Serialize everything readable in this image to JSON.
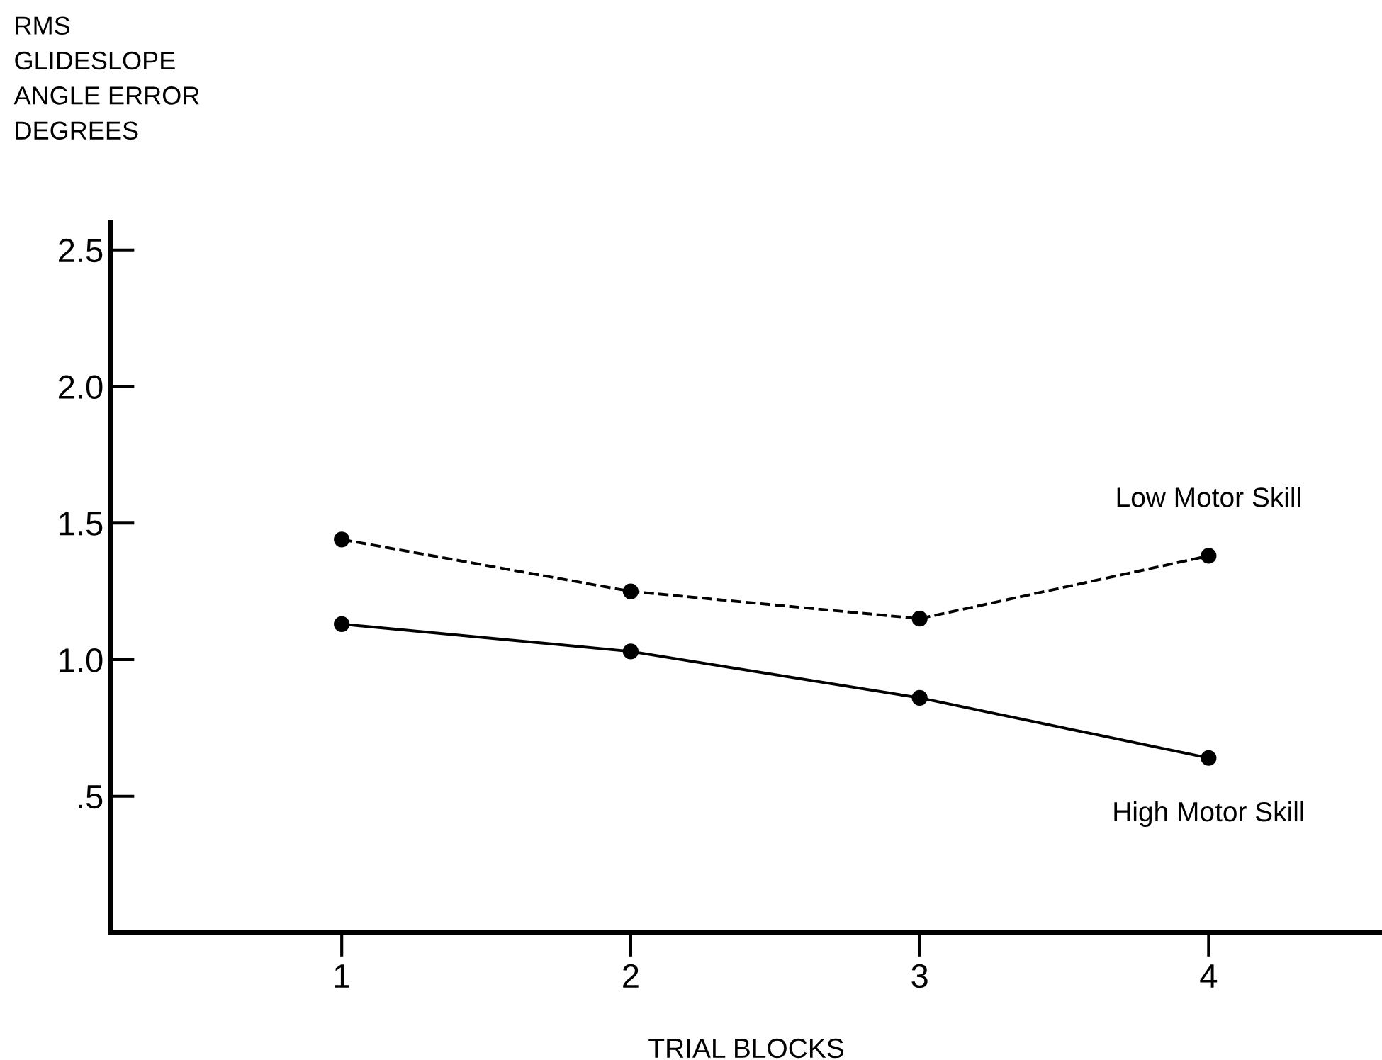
{
  "chart_data": {
    "type": "line",
    "ylabel": "RMS\nGLIDESLOPE\nANGLE ERROR\nDEGREES",
    "xlabel": "TRIAL BLOCKS",
    "x": [
      1,
      2,
      3,
      4
    ],
    "xlim": [
      0.2,
      4.6
    ],
    "xticks": [
      1,
      2,
      3,
      4
    ],
    "ylim": [
      0,
      2.6
    ],
    "yticks": [
      {
        "value": 0.5,
        "label": ".5"
      },
      {
        "value": 1.0,
        "label": "1.0"
      },
      {
        "value": 1.5,
        "label": "1.5"
      },
      {
        "value": 2.0,
        "label": "2.0"
      },
      {
        "value": 2.5,
        "label": "2.5"
      }
    ],
    "series": [
      {
        "name": "Low Motor Skill",
        "color": "#000000",
        "line_style": "dashed",
        "values": [
          1.44,
          1.25,
          1.15,
          1.38
        ]
      },
      {
        "name": "High Motor Skill",
        "color": "#000000",
        "line_style": "solid",
        "values": [
          1.13,
          1.03,
          0.86,
          0.64
        ]
      }
    ],
    "marker": "circle",
    "grid": false,
    "legend": false
  }
}
